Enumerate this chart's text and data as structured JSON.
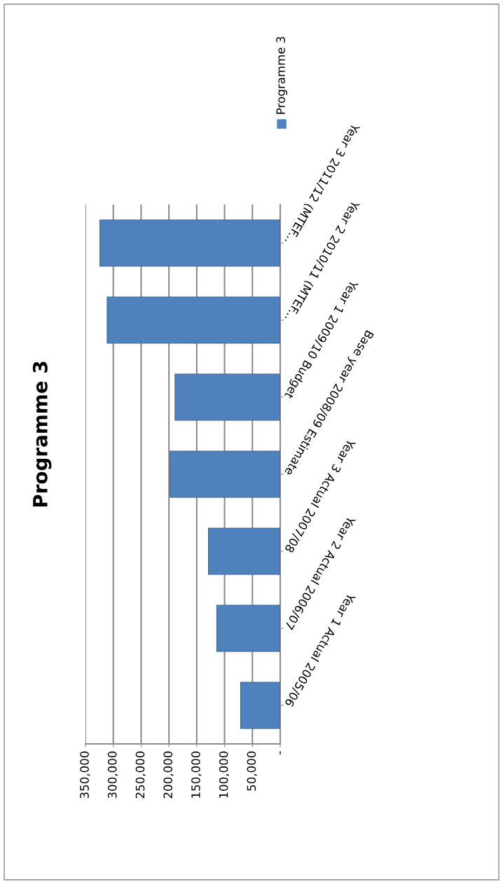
{
  "chart_data": {
    "type": "bar",
    "orientation": "horizontal",
    "title": "Programme 3",
    "categories": [
      "Year 3 2011/12 (MTEF...",
      "Year 2 2010/11 (MTEF...",
      "Year 1 2009/10 Budget",
      "Base year 2008/09 Estimate",
      "Year 3 Actual 2007/08",
      "Year 2 Actual 2006/07",
      "Year 1 Actual 2005/06"
    ],
    "series": [
      {
        "name": "Programme 3",
        "color": "#4f81bd",
        "values": [
          324000,
          311000,
          189000,
          198000,
          129000,
          114000,
          71000
        ]
      }
    ],
    "xlim": [
      350000,
      0
    ],
    "xticks": [
      {
        "value": 350000,
        "label": "350,000"
      },
      {
        "value": 300000,
        "label": "300,000"
      },
      {
        "value": 250000,
        "label": "250,000"
      },
      {
        "value": 200000,
        "label": "200,000"
      },
      {
        "value": 150000,
        "label": "150,000"
      },
      {
        "value": 100000,
        "label": "100,000"
      },
      {
        "value": 50000,
        "label": "50,000"
      },
      {
        "value": 0,
        "label": "-"
      }
    ],
    "grid": "x",
    "legend": "top right"
  }
}
